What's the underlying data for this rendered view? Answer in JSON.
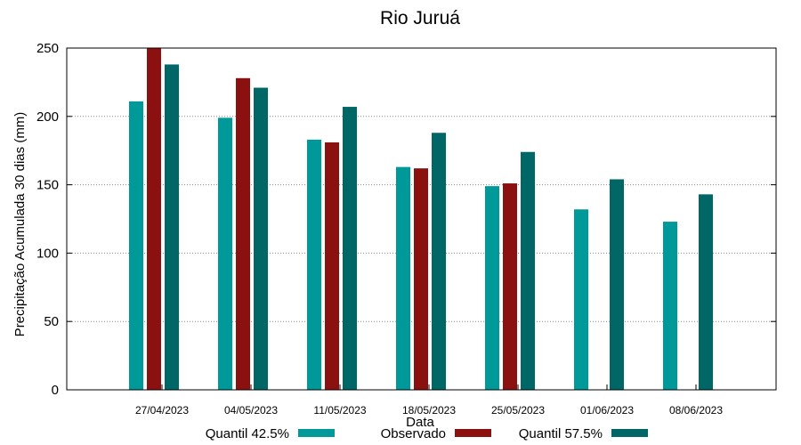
{
  "chart_data": {
    "type": "bar",
    "title": "Rio Juruá",
    "xlabel": "Data",
    "ylabel": "Precipitação Acumulada 30 dias (mm)",
    "ylim": [
      0,
      250
    ],
    "yticks": [
      0,
      50,
      100,
      150,
      200,
      250
    ],
    "grid": "horizontal dotted",
    "legend_position": "bottom",
    "categories": [
      "27/04/2023",
      "04/05/2023",
      "11/05/2023",
      "18/05/2023",
      "25/05/2023",
      "01/06/2023",
      "08/06/2023"
    ],
    "series": [
      {
        "name": "Quantil 42.5%",
        "color": "#009999",
        "values": [
          211,
          199,
          183,
          163,
          149,
          132,
          123
        ]
      },
      {
        "name": "Observado",
        "color": "#8b1010",
        "values": [
          250,
          228,
          181,
          162,
          151,
          null,
          null
        ]
      },
      {
        "name": "Quantil 57.5%",
        "color": "#006666",
        "values": [
          238,
          221,
          207,
          188,
          174,
          154,
          143
        ]
      }
    ]
  }
}
